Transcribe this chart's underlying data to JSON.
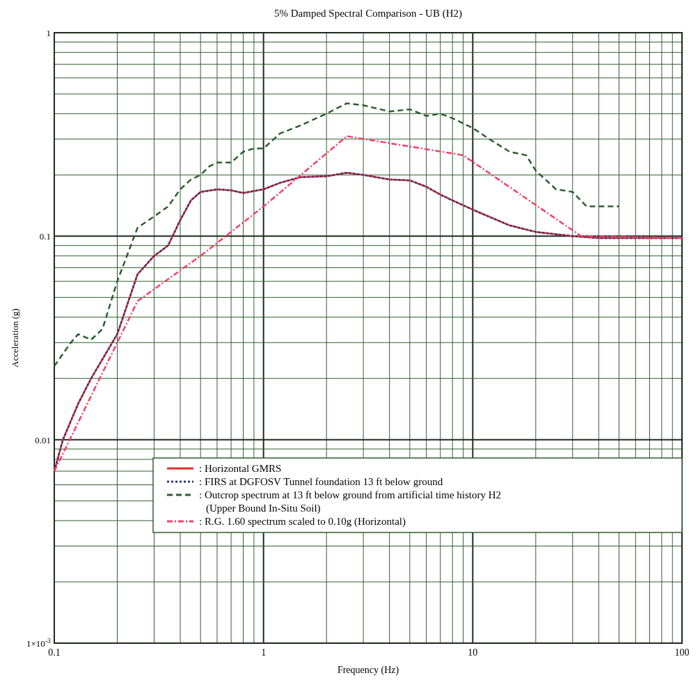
{
  "chart_data": {
    "type": "line",
    "title": "5% Damped Spectral Comparison - UB (H2)",
    "xlabel": "Frequency (Hz)",
    "ylabel": "Acceleration (g)",
    "log": "xy",
    "grid": true,
    "legend": "bottom",
    "xlim": [
      0.1,
      100
    ],
    "xticks": [
      0.1,
      {
        "value": 0.2,
        "label": null
      },
      {
        "value": 0.3,
        "label": null
      },
      {
        "value": 0.4,
        "label": null
      },
      {
        "value": 0.5,
        "label": null
      },
      {
        "value": 0.6,
        "label": null
      },
      {
        "value": 0.7,
        "label": null
      },
      {
        "value": 0.8,
        "label": null
      },
      {
        "value": 0.9,
        "label": null
      },
      1,
      {
        "value": 2,
        "label": null
      },
      {
        "value": 3,
        "label": null
      },
      {
        "value": 4,
        "label": null
      },
      {
        "value": 5,
        "label": null
      },
      {
        "value": 6,
        "label": null
      },
      {
        "value": 7,
        "label": null
      },
      {
        "value": 8,
        "label": null
      },
      {
        "value": 9,
        "label": null
      },
      10,
      {
        "value": 20,
        "label": null
      },
      {
        "value": 30,
        "label": null
      },
      {
        "value": 40,
        "label": null
      },
      {
        "value": 50,
        "label": null
      },
      {
        "value": 60,
        "label": null
      },
      {
        "value": 70,
        "label": null
      },
      {
        "value": 80,
        "label": null
      },
      {
        "value": 90,
        "label": null
      },
      100
    ],
    "ylim": [
      0.001,
      1
    ],
    "yticks": [
      {
        "value": 0.001,
        "label": "1×10$^{-3}$"
      },
      {
        "value": 0.002,
        "label": null
      },
      {
        "value": 0.003,
        "label": null
      },
      {
        "value": 0.004,
        "label": null
      },
      {
        "value": 0.005,
        "label": null
      },
      {
        "value": 0.006,
        "label": null
      },
      {
        "value": 0.007,
        "label": null
      },
      {
        "value": 0.008,
        "label": null
      },
      {
        "value": 0.009,
        "label": null
      },
      0.01,
      {
        "value": 0.02,
        "label": null
      },
      {
        "value": 0.03,
        "label": null
      },
      {
        "value": 0.04,
        "label": null
      },
      {
        "value": 0.05,
        "label": null
      },
      {
        "value": 0.06,
        "label": null
      },
      {
        "value": 0.07,
        "label": null
      },
      {
        "value": 0.08,
        "label": null
      },
      {
        "value": 0.09,
        "label": null
      },
      0.1,
      {
        "value": 0.2,
        "label": null
      },
      {
        "value": 0.3,
        "label": null
      },
      {
        "value": 0.4,
        "label": null
      },
      {
        "value": 0.5,
        "label": null
      },
      {
        "value": 0.6,
        "label": null
      },
      {
        "value": 0.7,
        "label": null
      },
      {
        "value": 0.8,
        "label": null
      },
      {
        "value": 0.9,
        "label": null
      },
      1
    ],
    "series": [
      {
        "name": ": Horizontal GMRS",
        "color": "#e03030",
        "line_style": "solid",
        "x": [
          0.1,
          0.11,
          0.13,
          0.15,
          0.2,
          0.25,
          0.3,
          0.35,
          0.4,
          0.45,
          0.5,
          0.6,
          0.7,
          0.8,
          1,
          1.2,
          1.5,
          2,
          2.5,
          3,
          4,
          5,
          6,
          7,
          8,
          10,
          15,
          20,
          30,
          40,
          100
        ],
        "values": [
          0.007,
          0.01,
          0.015,
          0.02,
          0.033,
          0.065,
          0.08,
          0.09,
          0.12,
          0.15,
          0.165,
          0.17,
          0.168,
          0.163,
          0.17,
          0.183,
          0.195,
          0.197,
          0.205,
          0.2,
          0.19,
          0.188,
          0.175,
          0.16,
          0.15,
          0.135,
          0.113,
          0.105,
          0.1,
          0.098,
          0.098
        ]
      },
      {
        "name": ": FIRS at DGFOSV Tunnel foundation 13 ft below ground",
        "color": "#283a80",
        "line_style": "dotted",
        "x": [
          0.1,
          0.11,
          0.13,
          0.15,
          0.2,
          0.25,
          0.3,
          0.35,
          0.4,
          0.45,
          0.5,
          0.6,
          0.7,
          0.8,
          1,
          1.2,
          1.5,
          2,
          2.5,
          3,
          4,
          5,
          6,
          7,
          8,
          10,
          15,
          20,
          30,
          40,
          100
        ],
        "values": [
          0.007,
          0.01,
          0.015,
          0.02,
          0.033,
          0.065,
          0.08,
          0.09,
          0.12,
          0.15,
          0.165,
          0.17,
          0.168,
          0.163,
          0.17,
          0.183,
          0.195,
          0.197,
          0.205,
          0.2,
          0.19,
          0.188,
          0.175,
          0.16,
          0.15,
          0.135,
          0.113,
          0.105,
          0.1,
          0.098,
          0.098
        ]
      },
      {
        "name": ": Outcrop spectrum at 13 ft below ground from artificial time history H2\n(Upper Bound In-Situ Soil)",
        "color": "#2e5e2e",
        "line_style": "dashed",
        "x": [
          0.1,
          0.12,
          0.13,
          0.15,
          0.17,
          0.2,
          0.25,
          0.3,
          0.35,
          0.4,
          0.45,
          0.5,
          0.55,
          0.6,
          0.7,
          0.8,
          0.9,
          1,
          1.2,
          1.5,
          2,
          2.5,
          3,
          4,
          5,
          6,
          7,
          8,
          10,
          12,
          15,
          18,
          20,
          25,
          30,
          35,
          50
        ],
        "values": [
          0.023,
          0.03,
          0.033,
          0.031,
          0.035,
          0.06,
          0.11,
          0.125,
          0.14,
          0.17,
          0.19,
          0.2,
          0.22,
          0.23,
          0.23,
          0.26,
          0.27,
          0.27,
          0.32,
          0.35,
          0.4,
          0.45,
          0.44,
          0.41,
          0.42,
          0.39,
          0.4,
          0.38,
          0.34,
          0.3,
          0.26,
          0.25,
          0.21,
          0.17,
          0.165,
          0.14,
          0.14
        ]
      },
      {
        "name": ": R.G. 1.60 spectrum scaled to 0.10g (Horizontal)",
        "color": "#f0406a",
        "line_style": "dashdot",
        "x": [
          0.1,
          0.2,
          0.25,
          0.5,
          1,
          2.5,
          9,
          33,
          100
        ],
        "values": [
          0.007,
          0.03,
          0.048,
          0.08,
          0.14,
          0.31,
          0.25,
          0.1,
          0.098
        ]
      }
    ]
  }
}
